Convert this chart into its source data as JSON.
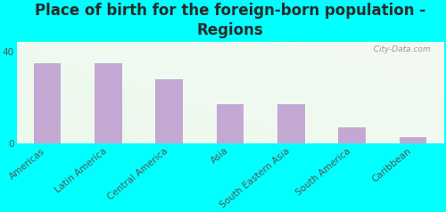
{
  "title": "Place of birth for the foreign-born population -\nRegions",
  "categories": [
    "Americas",
    "Latin America",
    "Central America",
    "Asia",
    "South Eastern Asia",
    "South America",
    "Caribbean"
  ],
  "values": [
    35,
    35,
    28,
    17,
    17,
    7,
    3
  ],
  "bar_color": "#c4a8d4",
  "background_color": "#00ffff",
  "ylim": [
    0,
    44
  ],
  "yticks": [
    0,
    40
  ],
  "watermark": "  City-Data.com",
  "title_fontsize": 12,
  "tick_fontsize": 7.5,
  "title_color": "#2a2a2a"
}
